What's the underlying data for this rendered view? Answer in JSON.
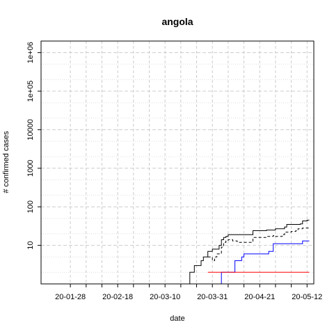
{
  "chart_data": {
    "type": "line",
    "title": "angola",
    "xlabel": "date",
    "ylabel": "# confirmed cases",
    "y_scale": "log",
    "xlim": [
      "2020-01-15",
      "2020-05-15"
    ],
    "ylim_log10": [
      0,
      6.3
    ],
    "grid": true,
    "x_tick_labels": [
      "20-01-28",
      "20-02-18",
      "20-03-10",
      "20-03-31",
      "20-04-21",
      "20-05-12"
    ],
    "x_minor_ticks": [
      "2020-01-28",
      "2020-02-04",
      "2020-02-11",
      "2020-02-18",
      "2020-02-25",
      "2020-03-03",
      "2020-03-10",
      "2020-03-17",
      "2020-03-24",
      "2020-03-31",
      "2020-04-07",
      "2020-04-14",
      "2020-04-21",
      "2020-04-28",
      "2020-05-05",
      "2020-05-12"
    ],
    "x_major_ticks": [
      "2020-01-28",
      "2020-02-18",
      "2020-03-10",
      "2020-03-31",
      "2020-04-21",
      "2020-05-12"
    ],
    "y_ticks": [
      {
        "value": 10,
        "label": "10"
      },
      {
        "value": 100,
        "label": "100"
      },
      {
        "value": 1000,
        "label": "1000"
      },
      {
        "value": 10000,
        "label": "10000"
      },
      {
        "value": 100000,
        "label": "1e+05"
      },
      {
        "value": 1000000,
        "label": "1e+06"
      }
    ],
    "series": [
      {
        "color": "#000000",
        "dash": "solid",
        "points": [
          [
            "2020-03-20",
            1
          ],
          [
            "2020-03-21",
            2
          ],
          [
            "2020-03-22",
            2
          ],
          [
            "2020-03-23",
            3
          ],
          [
            "2020-03-25",
            3
          ],
          [
            "2020-03-26",
            4
          ],
          [
            "2020-03-27",
            5
          ],
          [
            "2020-03-28",
            5
          ],
          [
            "2020-03-29",
            7
          ],
          [
            "2020-03-30",
            7
          ],
          [
            "2020-03-31",
            8
          ],
          [
            "2020-04-01",
            8
          ],
          [
            "2020-04-02",
            8
          ],
          [
            "2020-04-03",
            10
          ],
          [
            "2020-04-04",
            14
          ],
          [
            "2020-04-05",
            16
          ],
          [
            "2020-04-06",
            17
          ],
          [
            "2020-04-07",
            19
          ],
          [
            "2020-04-08",
            19
          ],
          [
            "2020-04-17",
            19
          ],
          [
            "2020-04-18",
            24
          ],
          [
            "2020-04-24",
            25
          ],
          [
            "2020-04-28",
            27
          ],
          [
            "2020-05-02",
            30
          ],
          [
            "2020-05-03",
            35
          ],
          [
            "2020-05-09",
            36
          ],
          [
            "2020-05-10",
            43
          ],
          [
            "2020-05-12",
            45
          ],
          [
            "2020-05-13",
            45
          ]
        ]
      },
      {
        "color": "#000000",
        "dash": "dashed",
        "points": [
          [
            "2020-03-29",
            5
          ],
          [
            "2020-03-30",
            5
          ],
          [
            "2020-03-31",
            4
          ],
          [
            "2020-04-01",
            5
          ],
          [
            "2020-04-02",
            6
          ],
          [
            "2020-04-03",
            6
          ],
          [
            "2020-04-04",
            9
          ],
          [
            "2020-04-05",
            12
          ],
          [
            "2020-04-06",
            13
          ],
          [
            "2020-04-07",
            14
          ],
          [
            "2020-04-09",
            13
          ],
          [
            "2020-04-11",
            12
          ],
          [
            "2020-04-17",
            12
          ],
          [
            "2020-04-18",
            16
          ],
          [
            "2020-04-24",
            17
          ],
          [
            "2020-04-27",
            18
          ],
          [
            "2020-04-28",
            17
          ],
          [
            "2020-05-01",
            19
          ],
          [
            "2020-05-02",
            22
          ],
          [
            "2020-05-05",
            23
          ],
          [
            "2020-05-07",
            24
          ],
          [
            "2020-05-08",
            27
          ],
          [
            "2020-05-09",
            27
          ],
          [
            "2020-05-10",
            28
          ],
          [
            "2020-05-13",
            30
          ]
        ]
      },
      {
        "color": "#0000ff",
        "dash": "solid",
        "points": [
          [
            "2020-04-01",
            1
          ],
          [
            "2020-04-03",
            1
          ],
          [
            "2020-04-04",
            2
          ],
          [
            "2020-04-09",
            2
          ],
          [
            "2020-04-10",
            4
          ],
          [
            "2020-04-12",
            4
          ],
          [
            "2020-04-13",
            5
          ],
          [
            "2020-04-14",
            6
          ],
          [
            "2020-04-24",
            6
          ],
          [
            "2020-04-25",
            7
          ],
          [
            "2020-04-26",
            7
          ],
          [
            "2020-04-27",
            11
          ],
          [
            "2020-05-09",
            11
          ],
          [
            "2020-05-10",
            13
          ],
          [
            "2020-05-13",
            13
          ]
        ]
      },
      {
        "color": "#ff0000",
        "dash": "solid",
        "points": [
          [
            "2020-03-29",
            2
          ],
          [
            "2020-05-13",
            2
          ]
        ]
      }
    ]
  }
}
